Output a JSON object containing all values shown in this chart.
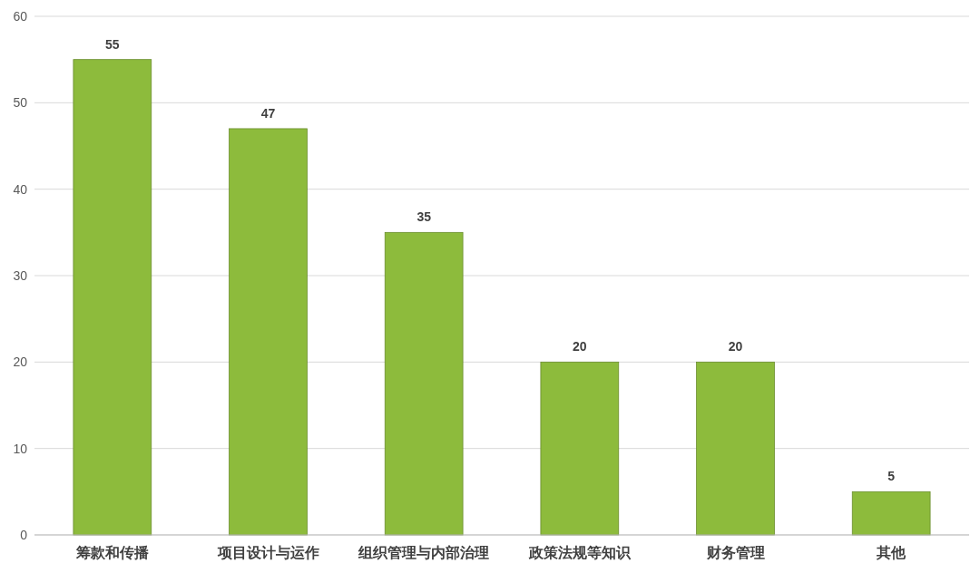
{
  "chart_data": {
    "type": "bar",
    "categories": [
      "筹款和传播",
      "项目设计与运作",
      "组织管理与内部治理",
      "政策法规等知识",
      "财务管理",
      "其他"
    ],
    "values": [
      55,
      47,
      35,
      20,
      20,
      5
    ],
    "color": "#8dbb3c",
    "ylim": [
      0,
      60
    ],
    "yticks": [
      0,
      10,
      20,
      30,
      40,
      50,
      60
    ],
    "grid": "y",
    "data_labels": true
  }
}
